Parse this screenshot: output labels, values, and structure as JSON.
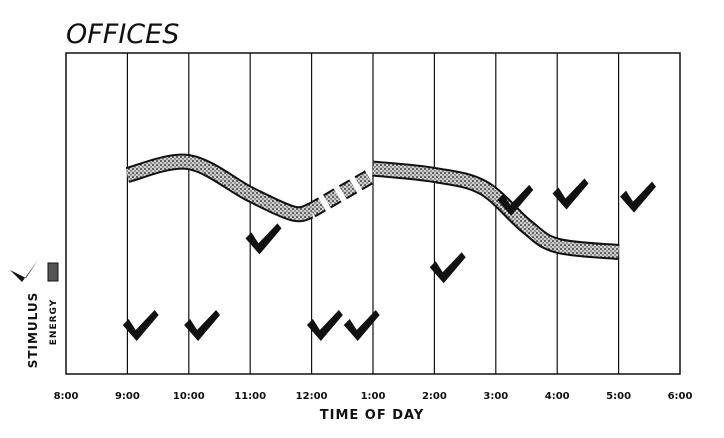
{
  "chart_data": {
    "type": "line",
    "title": "OFFICES",
    "xlabel": "TIME OF DAY",
    "ylabel": "STIMULUS",
    "ylabel_secondary": "ENERGY",
    "x_ticks": [
      "8:00",
      "9:00",
      "10:00",
      "11:00",
      "12:00",
      "1:00",
      "2:00",
      "3:00",
      "4:00",
      "5:00",
      "6:00"
    ],
    "grid": true,
    "series": [
      {
        "name": "ENERGY",
        "style": "stippled-band",
        "segments": [
          {
            "style": "solid",
            "points": [
              [
                1.0,
                0.62
              ],
              [
                2.0,
                0.66
              ],
              [
                3.0,
                0.56
              ],
              [
                3.7,
                0.5
              ],
              [
                4.0,
                0.51
              ]
            ]
          },
          {
            "style": "dashed",
            "points": [
              [
                4.0,
                0.51
              ],
              [
                5.0,
                0.62
              ]
            ]
          },
          {
            "style": "solid",
            "points": [
              [
                5.0,
                0.64
              ],
              [
                6.0,
                0.62
              ],
              [
                6.8,
                0.58
              ],
              [
                7.5,
                0.46
              ],
              [
                8.0,
                0.4
              ],
              [
                9.0,
                0.38
              ]
            ]
          }
        ]
      },
      {
        "name": "STIMULUS",
        "style": "check-marks",
        "points": [
          [
            1.2,
            0.14
          ],
          [
            2.2,
            0.14
          ],
          [
            3.2,
            0.41
          ],
          [
            4.2,
            0.14
          ],
          [
            4.8,
            0.14
          ],
          [
            6.2,
            0.32
          ],
          [
            7.3,
            0.53
          ],
          [
            8.2,
            0.55
          ],
          [
            9.3,
            0.54
          ]
        ]
      }
    ]
  }
}
